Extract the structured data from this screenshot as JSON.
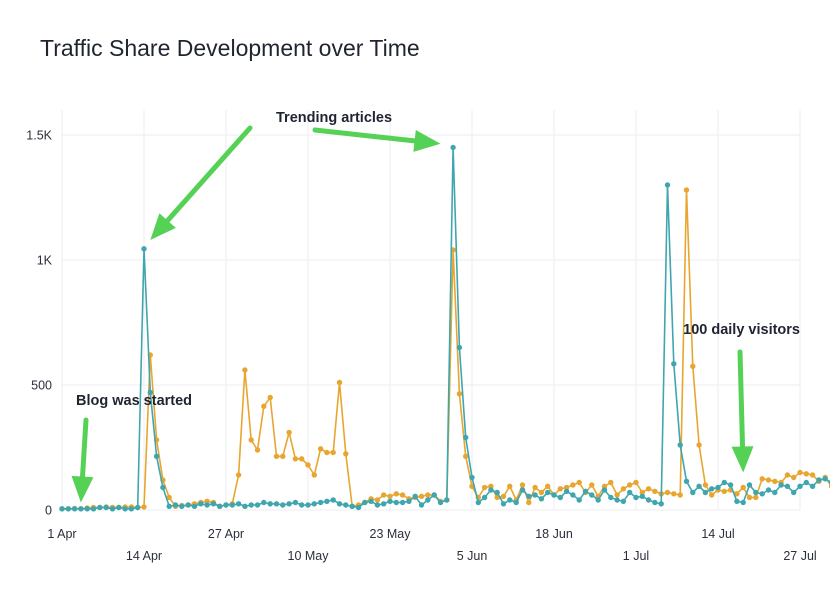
{
  "chart_data": {
    "type": "line",
    "title": "Traffic Share Development over Time",
    "xlabel": "",
    "ylabel": "",
    "x_range": [
      "2021-04-01",
      "2021-07-27"
    ],
    "ylim": [
      0,
      1600
    ],
    "grid": true,
    "y_ticks": [
      {
        "value": 0,
        "label": "0"
      },
      {
        "value": 500,
        "label": "500"
      },
      {
        "value": 1000,
        "label": "1K"
      },
      {
        "value": 1500,
        "label": "1.5K"
      }
    ],
    "x_ticks": [
      {
        "date": "2021-04-01",
        "label": "1 Apr",
        "row": 1
      },
      {
        "date": "2021-04-14",
        "label": "14 Apr",
        "row": 2
      },
      {
        "date": "2021-04-27",
        "label": "27 Apr",
        "row": 1
      },
      {
        "date": "2021-05-10",
        "label": "10 May",
        "row": 2
      },
      {
        "date": "2021-05-23",
        "label": "23 May",
        "row": 1
      },
      {
        "date": "2021-06-05",
        "label": "5 Jun",
        "row": 2
      },
      {
        "date": "2021-06-18",
        "label": "18 Jun",
        "row": 1
      },
      {
        "date": "2021-07-01",
        "label": "1 Jul",
        "row": 2
      },
      {
        "date": "2021-07-14",
        "label": "14 Jul",
        "row": 1
      },
      {
        "date": "2021-07-27",
        "label": "27 Jul",
        "row": 2
      }
    ],
    "series": [
      {
        "color": "#e8a630",
        "start_date": "2021-04-01",
        "values": [
          5,
          5,
          6,
          5,
          8,
          10,
          10,
          12,
          10,
          10,
          12,
          12,
          10,
          12,
          620,
          280,
          120,
          50,
          15,
          18,
          20,
          25,
          30,
          35,
          30,
          15,
          20,
          25,
          140,
          560,
          280,
          240,
          415,
          450,
          215,
          215,
          310,
          205,
          205,
          180,
          140,
          245,
          230,
          230,
          510,
          225,
          15,
          20,
          30,
          45,
          40,
          60,
          55,
          65,
          60,
          45,
          50,
          55,
          60,
          60,
          35,
          40,
          1040,
          465,
          215,
          95,
          50,
          90,
          95,
          50,
          55,
          95,
          40,
          100,
          30,
          90,
          70,
          95,
          60,
          85,
          90,
          100,
          110,
          70,
          100,
          55,
          95,
          110,
          60,
          85,
          100,
          110,
          70,
          85,
          75,
          65,
          70,
          65,
          60,
          1280,
          575,
          260,
          100,
          60,
          80,
          75,
          80,
          65,
          90,
          50,
          50,
          125,
          120,
          115,
          110,
          140,
          130,
          150,
          145,
          140,
          115,
          130,
          95,
          135,
          120,
          125,
          105,
          95,
          110,
          100,
          130,
          150
        ]
      },
      {
        "color": "#3fa6b0",
        "start_date": "2021-04-01",
        "values": [
          5,
          5,
          5,
          5,
          5,
          5,
          10,
          10,
          5,
          10,
          5,
          5,
          10,
          1045,
          470,
          215,
          90,
          15,
          20,
          15,
          20,
          15,
          25,
          20,
          25,
          15,
          20,
          20,
          25,
          15,
          20,
          20,
          30,
          25,
          25,
          20,
          25,
          30,
          20,
          20,
          25,
          30,
          35,
          40,
          25,
          20,
          15,
          10,
          30,
          35,
          20,
          25,
          35,
          30,
          30,
          35,
          55,
          20,
          40,
          60,
          30,
          40,
          1450,
          650,
          290,
          130,
          30,
          50,
          80,
          70,
          25,
          40,
          30,
          80,
          55,
          60,
          45,
          70,
          60,
          50,
          75,
          60,
          40,
          75,
          60,
          40,
          80,
          50,
          40,
          35,
          70,
          50,
          55,
          40,
          30,
          25,
          1300,
          585,
          260,
          115,
          70,
          95,
          70,
          85,
          90,
          110,
          100,
          35,
          30,
          100,
          70,
          65,
          80,
          70,
          100,
          95,
          70,
          95,
          110,
          95,
          120,
          125,
          110,
          100,
          70,
          85,
          60,
          95,
          100,
          105,
          110
        ]
      }
    ],
    "annotations": [
      {
        "text": "Blog was started",
        "date": "2021-04-04",
        "value": 30
      },
      {
        "text": "Trending articles",
        "date": "2021-04-15",
        "value": 1080
      },
      {
        "text": "Trending articles",
        "date": "2021-05-31",
        "value": 1465
      },
      {
        "text": "100 daily visitors",
        "date": "2021-07-18",
        "value": 150
      }
    ]
  }
}
